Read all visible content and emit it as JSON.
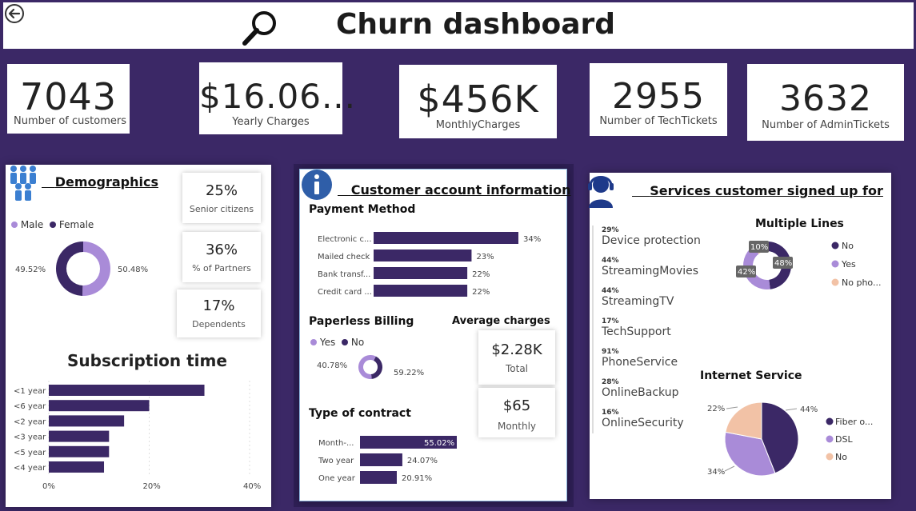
{
  "header": {
    "title": "Churn dashboard",
    "back_icon": "back-arrow-icon",
    "search_icon": "magnifier-icon"
  },
  "kpis": [
    {
      "value": "7043",
      "label": "Number of customers"
    },
    {
      "value": "$16.06...",
      "label": "Yearly Charges"
    },
    {
      "value": "$456K",
      "label": "MonthlyCharges"
    },
    {
      "value": "2955",
      "label": "Number of TechTickets"
    },
    {
      "value": "3632",
      "label": "Number of AdminTickets"
    }
  ],
  "demographics": {
    "title": "Demographics",
    "icon": "people-group-icon",
    "legend": [
      "Male",
      "Female"
    ],
    "cards": [
      {
        "value": "25%",
        "label": "Senior citizens"
      },
      {
        "value": "36%",
        "label": "% of Partners"
      },
      {
        "value": "17%",
        "label": "Dependents"
      }
    ]
  },
  "account": {
    "title": "Customer account information",
    "icon": "info-icon"
  },
  "services": {
    "title": "Services customer signed up for",
    "icon": "support-agent-icon",
    "list": [
      {
        "pct": "29%",
        "name": "Device protection"
      },
      {
        "pct": "44%",
        "name": "StreamingMovies"
      },
      {
        "pct": "44%",
        "name": "StreamingTV"
      },
      {
        "pct": "17%",
        "name": "TechSupport"
      },
      {
        "pct": "91%",
        "name": "PhoneService"
      },
      {
        "pct": "28%",
        "name": "OnlineBackup"
      },
      {
        "pct": "16%",
        "name": "OnlineSecurity"
      }
    ]
  },
  "average_charges": {
    "title": "Average charges",
    "total": {
      "value": "$2.28K",
      "label": "Total"
    },
    "monthly": {
      "value": "$65",
      "label": "Monthly"
    }
  },
  "colors": {
    "dark": "#3b2866",
    "light": "#a98bd8",
    "peach": "#f2c2a6",
    "bar": "#3b2866"
  },
  "chart_data": [
    {
      "id": "gender",
      "type": "pie",
      "donut": true,
      "title": "",
      "categories": [
        "Male",
        "Female"
      ],
      "values": [
        50.48,
        49.52
      ],
      "labels": [
        "50.48%",
        "49.52%"
      ]
    },
    {
      "id": "subscription",
      "type": "bar",
      "orientation": "horizontal",
      "title": "Subscription time",
      "categories": [
        "<1 year",
        "<6 year",
        "<2 year",
        "<3 year",
        "<5 year",
        "<4 year"
      ],
      "values": [
        31,
        20,
        15,
        12,
        12,
        11
      ],
      "xlim": [
        0,
        40
      ],
      "xticks": [
        "0%",
        "20%",
        "40%"
      ],
      "grid": true
    },
    {
      "id": "payment",
      "type": "bar",
      "orientation": "horizontal",
      "title": "Payment Method",
      "categories": [
        "Electronic c...",
        "Mailed check",
        "Bank transf...",
        "Credit card ..."
      ],
      "values": [
        34,
        23,
        22,
        22
      ],
      "labels": [
        "34%",
        "23%",
        "22%",
        "22%"
      ]
    },
    {
      "id": "paperless",
      "type": "pie",
      "donut": true,
      "title": "Paperless Billing",
      "categories": [
        "Yes",
        "No"
      ],
      "values": [
        59.22,
        40.78
      ],
      "labels": [
        "59.22%",
        "40.78%"
      ]
    },
    {
      "id": "contract",
      "type": "bar",
      "orientation": "horizontal",
      "title": "Type of contract",
      "categories": [
        "Month-...",
        "Two year",
        "One year"
      ],
      "values": [
        55.02,
        24.07,
        20.91
      ],
      "labels": [
        "55.02%",
        "24.07%",
        "20.91%"
      ]
    },
    {
      "id": "multiple_lines",
      "type": "pie",
      "donut": true,
      "title": "Multiple Lines",
      "categories": [
        "No",
        "Yes",
        "No pho..."
      ],
      "values": [
        48,
        42,
        10
      ],
      "labels": [
        "48%",
        "42%",
        "10%"
      ]
    },
    {
      "id": "internet",
      "type": "pie",
      "title": "Internet Service",
      "categories": [
        "Fiber o...",
        "DSL",
        "No"
      ],
      "values": [
        44,
        34,
        22
      ],
      "labels": [
        "44%",
        "34%",
        "22%"
      ]
    }
  ]
}
